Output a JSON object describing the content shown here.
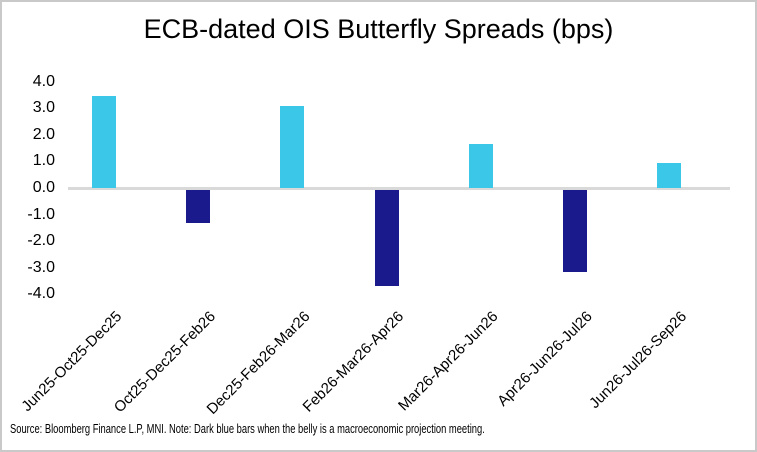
{
  "window": {
    "background_color": "#FFFFFF",
    "border_color": "#C9C9C9"
  },
  "header": {
    "title": "ECB-dated OIS Butterfly Spreads (bps)"
  },
  "footer": {
    "text": "Source: Bloomberg Finance L.P, MNI. Note: Dark blue bars when the belly is a macroeconomic projection meeting."
  },
  "chart_data": {
    "type": "bar",
    "title": "ECB-dated OIS Butterfly Spreads (bps)",
    "categories": [
      "Jun25-Oct25-Dec25",
      "Oct25-Dec25-Feb26",
      "Dec25-Feb26-Mar26",
      "Feb26-Mar26-Apr26",
      "Mar26-Apr26-Jun26",
      "Apr26-Jun26-Jul26",
      "Jun26-Jul26-Sep26"
    ],
    "values": [
      3.45,
      -1.25,
      3.1,
      -3.6,
      1.65,
      -3.1,
      0.95
    ],
    "bar_colors": [
      "#3BC8E8",
      "#1A1A8C",
      "#3BC8E8",
      "#1A1A8C",
      "#3BC8E8",
      "#1A1A8C",
      "#3BC8E8"
    ],
    "palette": {
      "light_blue": "#3BC8E8",
      "dark_blue_projection_meeting": "#1A1A8C",
      "axis_line": "#D9D9D9"
    },
    "xlabel": "",
    "ylabel": "",
    "ylim": [
      -4.0,
      4.0
    ],
    "ytick_step": 1.0,
    "yticks": [
      "4.0",
      "3.0",
      "2.0",
      "1.0",
      "0.0",
      "-1.0",
      "-2.0",
      "-3.0",
      "-4.0"
    ],
    "grid": false,
    "legend_position": "none",
    "note": "Source: Bloomberg Finance L.P, MNI. Note: Dark blue bars when the belly is a macroeconomic projection meeting."
  }
}
